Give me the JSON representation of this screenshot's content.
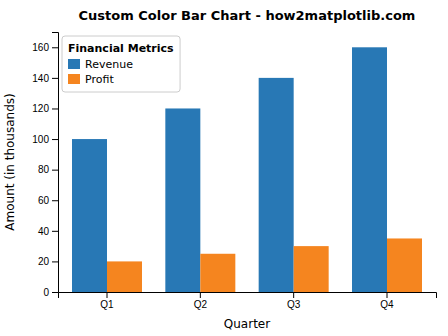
{
  "chart_data": {
    "type": "bar",
    "title": "Custom Color Bar Chart - how2matplotlib.com",
    "xlabel": "Quarter",
    "ylabel": "Amount (in thousands)",
    "categories": [
      "Q1",
      "Q2",
      "Q3",
      "Q4"
    ],
    "series": [
      {
        "name": "Revenue",
        "color": "#2878b5",
        "values": [
          100,
          120,
          140,
          160
        ]
      },
      {
        "name": "Profit",
        "color": "#f5851f",
        "values": [
          20,
          25,
          30,
          35
        ]
      }
    ],
    "ylim": [
      0,
      170
    ],
    "yticks": [
      0,
      20,
      40,
      60,
      80,
      100,
      120,
      140,
      160
    ],
    "legend": "upper left",
    "legend_title": "Financial Metrics"
  }
}
